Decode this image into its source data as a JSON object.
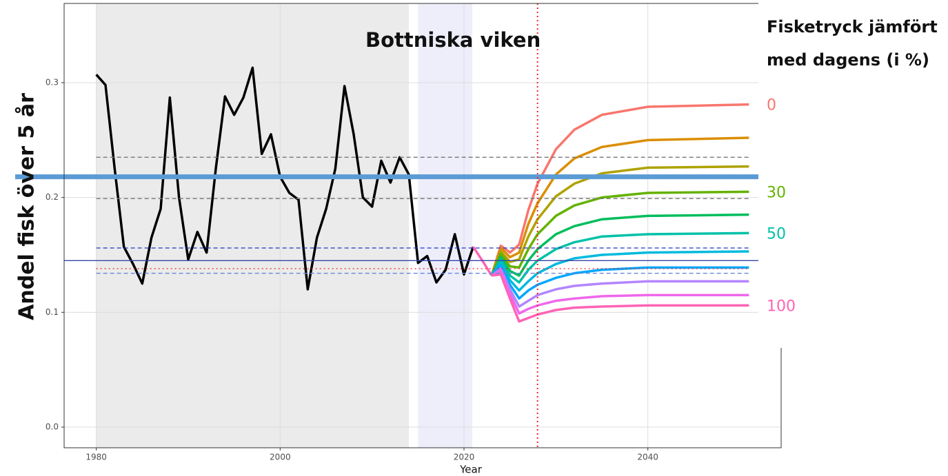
{
  "chart_data": {
    "type": "line",
    "title": "Bottniska viken",
    "legend_title": [
      "Fisketryck jämfört",
      "med dagens (i %)"
    ],
    "xlabel": "Year",
    "ylabel": "Andel fisk över 5 år",
    "xlim": [
      1976.5,
      2054.5
    ],
    "ylim": [
      -0.018,
      0.369
    ],
    "xticks": [
      1980,
      2000,
      2020,
      2040
    ],
    "yticks": [
      {
        "value": 0,
        "label": "0.0"
      },
      0.1,
      0.2,
      0.3
    ],
    "grid": true,
    "bands": [
      {
        "from": 1980,
        "to": 2014,
        "color": "#ebebeb"
      },
      {
        "from": 2015,
        "to": 2020.9,
        "color": "#eeeefb"
      }
    ],
    "hlines": [
      {
        "value": 0.235,
        "color": "#777777",
        "style": "dashed"
      },
      {
        "value": 0.199,
        "color": "#777777",
        "style": "dashed"
      },
      {
        "value": 0.156,
        "color": "#2233cc",
        "style": "dashed"
      },
      {
        "value": 0.145,
        "color": "#3344aa",
        "style": "solid"
      },
      {
        "value": 0.138,
        "color": "#ee2222",
        "style": "dotted"
      },
      {
        "value": 0.134,
        "color": "#6688dd",
        "style": "dashed"
      },
      {
        "value": 0.218,
        "color": "#5b9bd5",
        "style": "thick"
      }
    ],
    "vlines": [
      {
        "value": 2028,
        "color": "#ee2222",
        "style": "dotted"
      }
    ],
    "series": [
      {
        "color": "#000000",
        "x": [
          1980,
          1981,
          1982,
          1983,
          1984,
          1985,
          1986,
          1987,
          1988,
          1989,
          1990,
          1991,
          1992,
          1993,
          1994,
          1995,
          1996,
          1997,
          1998,
          1999,
          2000,
          2001,
          2002,
          2003,
          2004,
          2005,
          2006,
          2007,
          2008,
          2009,
          2010,
          2011,
          2012,
          2013,
          2014,
          2015,
          2016,
          2017,
          2018,
          2019,
          2020,
          2021
        ],
        "values": [
          0.307,
          0.298,
          0.225,
          0.157,
          0.142,
          0.125,
          0.165,
          0.19,
          0.287,
          0.2,
          0.146,
          0.17,
          0.152,
          0.225,
          0.288,
          0.272,
          0.287,
          0.313,
          0.238,
          0.255,
          0.218,
          0.204,
          0.198,
          0.12,
          0.165,
          0.19,
          0.225,
          0.297,
          0.255,
          0.2,
          0.192,
          0.232,
          0.213,
          0.235,
          0.22,
          0.143,
          0.149,
          0.126,
          0.137,
          0.168,
          0.133,
          0.157
        ]
      },
      {
        "color": "#FF63B6",
        "x": [
          2021,
          2022,
          2023
        ],
        "values": [
          0.157,
          0.145,
          0.132
        ]
      },
      {
        "color": "#F8766D",
        "label": "0",
        "x": [
          2023,
          2024,
          2025,
          2026,
          2027,
          2028,
          2030,
          2032,
          2035,
          2040,
          2051
        ],
        "values": [
          0.132,
          0.158,
          0.152,
          0.159,
          0.189,
          0.212,
          0.242,
          0.259,
          0.272,
          0.279,
          0.281
        ]
      },
      {
        "color": "#DB8E00",
        "x": [
          2023,
          2024,
          2025,
          2026,
          2027,
          2028,
          2030,
          2032,
          2035,
          2040,
          2051
        ],
        "values": [
          0.132,
          0.156,
          0.148,
          0.152,
          0.177,
          0.195,
          0.22,
          0.234,
          0.244,
          0.25,
          0.252
        ]
      },
      {
        "color": "#AEA200",
        "x": [
          2023,
          2024,
          2025,
          2026,
          2027,
          2028,
          2030,
          2032,
          2035,
          2040,
          2051
        ],
        "values": [
          0.132,
          0.153,
          0.144,
          0.146,
          0.166,
          0.181,
          0.201,
          0.212,
          0.221,
          0.226,
          0.227
        ]
      },
      {
        "color": "#64B200",
        "label": "30",
        "x": [
          2023,
          2024,
          2025,
          2026,
          2027,
          2028,
          2030,
          2032,
          2035,
          2040,
          2051
        ],
        "values": [
          0.132,
          0.151,
          0.14,
          0.139,
          0.155,
          0.168,
          0.184,
          0.193,
          0.2,
          0.204,
          0.205
        ]
      },
      {
        "color": "#00BD5C",
        "x": [
          2023,
          2024,
          2025,
          2026,
          2027,
          2028,
          2030,
          2032,
          2035,
          2040,
          2051
        ],
        "values": [
          0.132,
          0.148,
          0.136,
          0.132,
          0.145,
          0.155,
          0.168,
          0.175,
          0.181,
          0.184,
          0.185
        ]
      },
      {
        "color": "#00C1A7",
        "label": "50",
        "x": [
          2023,
          2024,
          2025,
          2026,
          2027,
          2028,
          2030,
          2032,
          2035,
          2040,
          2051
        ],
        "values": [
          0.132,
          0.146,
          0.132,
          0.126,
          0.137,
          0.145,
          0.155,
          0.161,
          0.166,
          0.168,
          0.169
        ]
      },
      {
        "color": "#00BADE",
        "x": [
          2023,
          2024,
          2025,
          2026,
          2027,
          2028,
          2030,
          2032,
          2035,
          2040,
          2051
        ],
        "values": [
          0.132,
          0.143,
          0.128,
          0.119,
          0.127,
          0.134,
          0.142,
          0.147,
          0.15,
          0.152,
          0.153
        ]
      },
      {
        "color": "#00A6FF",
        "x": [
          2023,
          2024,
          2025,
          2026,
          2027,
          2028,
          2030,
          2032,
          2035,
          2040,
          2051
        ],
        "values": [
          0.132,
          0.141,
          0.124,
          0.112,
          0.119,
          0.124,
          0.13,
          0.134,
          0.137,
          0.139,
          0.139
        ]
      },
      {
        "color": "#B385FF",
        "x": [
          2023,
          2024,
          2025,
          2026,
          2027,
          2028,
          2030,
          2032,
          2035,
          2040,
          2051
        ],
        "values": [
          0.132,
          0.138,
          0.12,
          0.105,
          0.11,
          0.115,
          0.12,
          0.123,
          0.125,
          0.127,
          0.127
        ]
      },
      {
        "color": "#EF67EB",
        "x": [
          2023,
          2024,
          2025,
          2026,
          2027,
          2028,
          2030,
          2032,
          2035,
          2040,
          2051
        ],
        "values": [
          0.132,
          0.136,
          0.116,
          0.099,
          0.103,
          0.106,
          0.11,
          0.112,
          0.114,
          0.115,
          0.115
        ]
      },
      {
        "color": "#FF63B6",
        "label": "100",
        "x": [
          2023,
          2024,
          2025,
          2026,
          2027,
          2028,
          2030,
          2032,
          2035,
          2040,
          2051
        ],
        "values": [
          0.132,
          0.133,
          0.112,
          0.092,
          0.095,
          0.098,
          0.102,
          0.104,
          0.105,
          0.106,
          0.106
        ]
      }
    ]
  }
}
